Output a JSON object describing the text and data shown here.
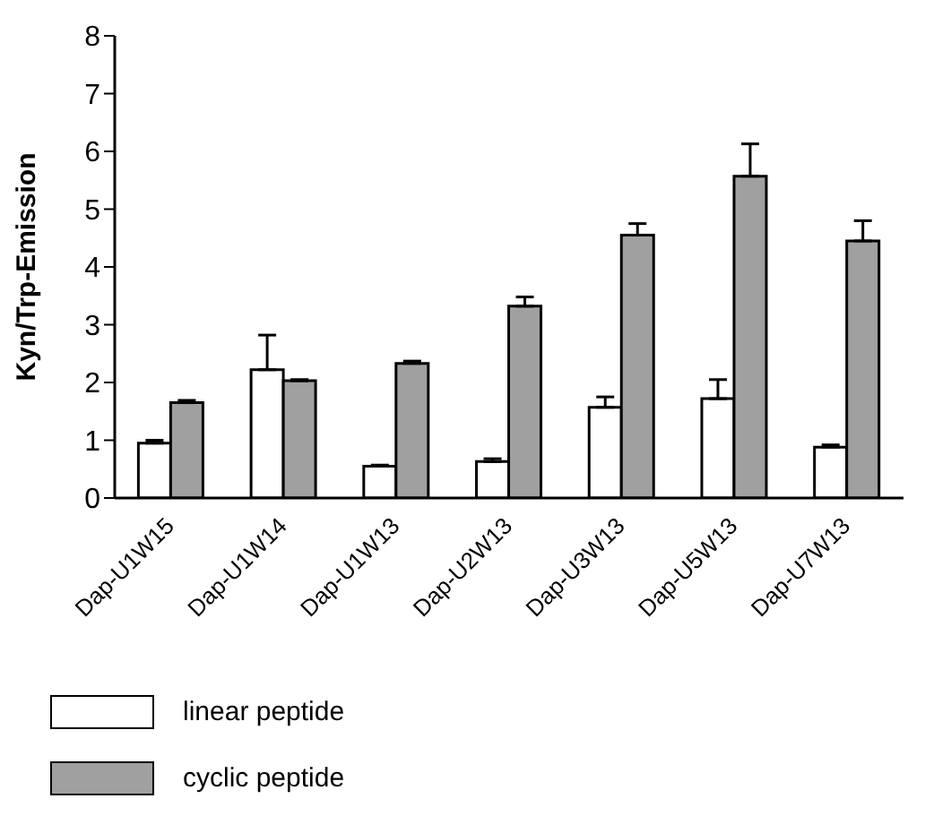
{
  "chart_data": {
    "type": "bar",
    "ylabel": "Kyn/Trp-Emission",
    "categories": [
      "Dap-U1W15",
      "Dap-U1W14",
      "Dap-U1W13",
      "Dap-U2W13",
      "Dap-U3W13",
      "Dap-U5W13",
      "Dap-U7W13"
    ],
    "series": [
      {
        "name": "linear peptide",
        "color": "#ffffff",
        "values": [
          0.95,
          2.22,
          0.55,
          0.63,
          1.57,
          1.72,
          0.88
        ],
        "errors": [
          [
            0.95,
            1.0
          ],
          [
            2.22,
            2.82
          ],
          [
            0.55,
            0.57
          ],
          [
            0.63,
            0.68
          ],
          [
            1.57,
            1.75
          ],
          [
            1.72,
            2.05
          ],
          [
            0.88,
            0.92
          ]
        ]
      },
      {
        "name": "cyclic peptide",
        "color": "#a0a0a0",
        "values": [
          1.65,
          2.03,
          2.33,
          3.32,
          4.55,
          5.57,
          4.45
        ],
        "errors": [
          [
            1.65,
            1.69
          ],
          [
            2.03,
            2.05
          ],
          [
            2.33,
            2.37
          ],
          [
            3.32,
            3.48
          ],
          [
            4.55,
            4.75
          ],
          [
            5.57,
            6.13
          ],
          [
            4.45,
            4.8
          ]
        ]
      }
    ],
    "ylim": [
      0,
      8
    ],
    "yticks": [
      0,
      1,
      2,
      3,
      4,
      5,
      6,
      7,
      8
    ],
    "grid": false,
    "legend": "bottom"
  }
}
